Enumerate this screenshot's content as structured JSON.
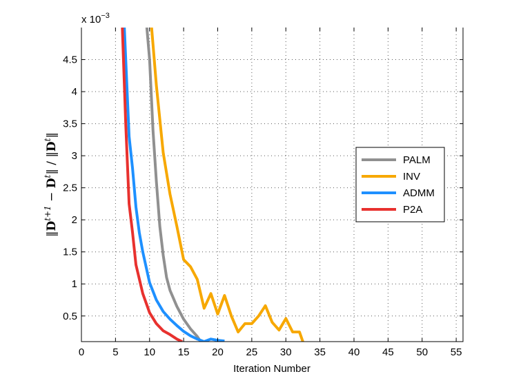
{
  "chart_data": {
    "type": "line",
    "title": "",
    "xlabel": "Iteration Number",
    "ylabel": "||D^{t+1} − D^t|| / ||D^t||",
    "ylabel_parts": {
      "prefix": "‖",
      "base1": "D",
      "sup1": "t+1",
      "mid": " − ",
      "base2": "D",
      "sup2": "t",
      "mid2": "‖ / ‖",
      "base3": "D",
      "sup3": "t",
      "suffix": "‖"
    },
    "y_multiplier": {
      "base": "x 10",
      "exponent": "−3"
    },
    "xlim": [
      0,
      56
    ],
    "ylim": [
      0.1,
      5.0
    ],
    "xticks": [
      0,
      5,
      10,
      15,
      20,
      25,
      30,
      35,
      40,
      45,
      50,
      55
    ],
    "yticks": [
      0.5,
      1,
      1.5,
      2,
      2.5,
      3,
      3.5,
      4,
      4.5
    ],
    "ytick_labels": [
      "0.5",
      "1",
      "1.5",
      "2",
      "2.5",
      "3",
      "3.5",
      "4",
      "4.5"
    ],
    "grid": true,
    "legend_position": "right",
    "series": [
      {
        "name": "PALM",
        "color": "#909090",
        "x": [
          9.6,
          10,
          10.5,
          11,
          11.5,
          12,
          12.5,
          13,
          14,
          15,
          16,
          17,
          17.5
        ],
        "y": [
          5.0,
          4.5,
          3.4,
          2.6,
          1.9,
          1.45,
          1.1,
          0.9,
          0.65,
          0.45,
          0.3,
          0.18,
          0.1
        ]
      },
      {
        "name": "INV",
        "color": "#f7a800",
        "x": [
          10.3,
          11,
          12,
          13,
          14,
          15,
          16,
          17,
          18,
          19,
          20,
          21,
          22,
          23,
          24,
          25,
          26,
          27,
          28,
          29,
          30,
          31,
          32,
          32.5
        ],
        "y": [
          5.0,
          4.1,
          3.05,
          2.4,
          1.9,
          1.38,
          1.27,
          1.07,
          0.62,
          0.85,
          0.53,
          0.82,
          0.5,
          0.25,
          0.38,
          0.38,
          0.5,
          0.66,
          0.4,
          0.28,
          0.46,
          0.25,
          0.25,
          0.1
        ]
      },
      {
        "name": "ADMM",
        "color": "#1e90ff",
        "x": [
          6.3,
          7,
          7.5,
          8,
          8.5,
          9,
          10,
          11,
          12,
          13,
          14,
          15,
          16,
          17,
          18,
          19,
          20,
          21
        ],
        "y": [
          5.0,
          3.3,
          2.8,
          2.2,
          1.8,
          1.5,
          1.02,
          0.75,
          0.57,
          0.45,
          0.35,
          0.26,
          0.19,
          0.14,
          0.1,
          0.14,
          0.12,
          0.11
        ]
      },
      {
        "name": "P2A",
        "color": "#e8312e",
        "x": [
          6.0,
          6.5,
          7,
          7.5,
          8,
          9,
          10,
          11,
          12,
          13,
          14,
          14.8
        ],
        "y": [
          5.0,
          3.5,
          2.25,
          1.8,
          1.3,
          0.85,
          0.55,
          0.38,
          0.27,
          0.21,
          0.14,
          0.1
        ]
      }
    ]
  }
}
